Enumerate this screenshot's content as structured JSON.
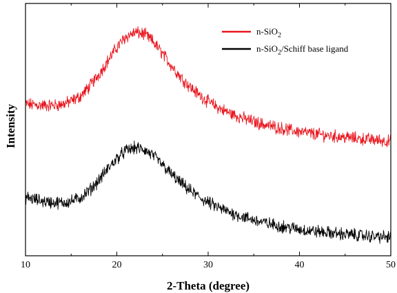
{
  "chart_data": {
    "type": "line",
    "title": "",
    "xlabel": "2-Theta (degree)",
    "ylabel": "Intensity",
    "xlim": [
      10,
      50
    ],
    "ylim": [
      0,
      100
    ],
    "xticks": [
      10,
      20,
      30,
      40,
      50
    ],
    "y_tick_labels_shown": false,
    "grid": false,
    "legend_position": "top-right",
    "series": [
      {
        "name": "n-SiO2",
        "name_base": "n-SiO",
        "name_sub": "2",
        "name_suffix": "",
        "color": "#e8141c",
        "noise": 2.0,
        "x": [
          10,
          11,
          12,
          13,
          14,
          15,
          16,
          17,
          18,
          19,
          20,
          21,
          22,
          23,
          24,
          25,
          26,
          27,
          28,
          29,
          30,
          31,
          32,
          33,
          34,
          35,
          36,
          37,
          38,
          39,
          40,
          41,
          42,
          43,
          44,
          45,
          46,
          47,
          48,
          49,
          50
        ],
        "y": [
          60.1,
          59.8,
          59.6,
          59.6,
          60.0,
          61.2,
          63.2,
          67.0,
          71.8,
          77.2,
          82.6,
          86.8,
          88.5,
          87.9,
          84.8,
          80.1,
          75.3,
          70.8,
          67.0,
          63.8,
          61.1,
          58.9,
          57.1,
          55.6,
          54.3,
          53.1,
          52.1,
          51.3,
          50.5,
          49.8,
          49.2,
          48.6,
          48.1,
          47.7,
          47.3,
          47.0,
          46.6,
          46.3,
          46.0,
          45.7,
          45.3
        ]
      },
      {
        "name": "n-SiO2/Schiff base ligand",
        "name_base": "n-SiO",
        "name_sub": "2",
        "name_suffix": "/Schiff base ligand",
        "color": "#000000",
        "noise": 2.0,
        "x": [
          10,
          11,
          12,
          13,
          14,
          15,
          16,
          17,
          18,
          19,
          20,
          21,
          22,
          23,
          24,
          25,
          26,
          27,
          28,
          29,
          30,
          31,
          32,
          33,
          34,
          35,
          36,
          37,
          38,
          39,
          40,
          41,
          42,
          43,
          44,
          45,
          46,
          47,
          48,
          49,
          50
        ],
        "y": [
          23.2,
          22.3,
          21.6,
          21.1,
          21.0,
          21.6,
          23.0,
          25.9,
          29.8,
          34.4,
          38.6,
          41.7,
          42.8,
          42.0,
          39.6,
          36.0,
          32.2,
          28.8,
          25.9,
          23.3,
          21.1,
          19.3,
          17.7,
          16.4,
          15.2,
          14.2,
          13.2,
          12.4,
          11.7,
          11.1,
          10.5,
          10.0,
          9.6,
          9.2,
          8.9,
          8.5,
          8.3,
          8.0,
          7.7,
          7.5,
          7.3
        ]
      }
    ]
  }
}
